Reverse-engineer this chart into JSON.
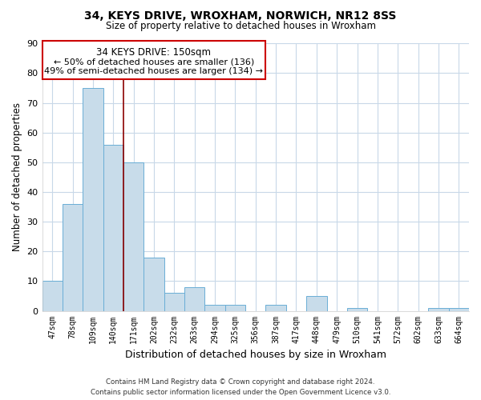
{
  "title": "34, KEYS DRIVE, WROXHAM, NORWICH, NR12 8SS",
  "subtitle": "Size of property relative to detached houses in Wroxham",
  "xlabel": "Distribution of detached houses by size in Wroxham",
  "ylabel": "Number of detached properties",
  "bar_color": "#c8dcea",
  "bar_edge_color": "#6aaed6",
  "highlight_line_color": "#8b0000",
  "categories": [
    "47sqm",
    "78sqm",
    "109sqm",
    "140sqm",
    "171sqm",
    "202sqm",
    "232sqm",
    "263sqm",
    "294sqm",
    "325sqm",
    "356sqm",
    "387sqm",
    "417sqm",
    "448sqm",
    "479sqm",
    "510sqm",
    "541sqm",
    "572sqm",
    "602sqm",
    "633sqm",
    "664sqm"
  ],
  "values": [
    10,
    36,
    75,
    56,
    50,
    18,
    6,
    8,
    2,
    2,
    0,
    2,
    0,
    5,
    0,
    1,
    0,
    0,
    0,
    1,
    1
  ],
  "highlight_index": 3,
  "annotation_title": "34 KEYS DRIVE: 150sqm",
  "annotation_line1": "← 50% of detached houses are smaller (136)",
  "annotation_line2": "49% of semi-detached houses are larger (134) →",
  "ylim": [
    0,
    90
  ],
  "yticks": [
    0,
    10,
    20,
    30,
    40,
    50,
    60,
    70,
    80,
    90
  ],
  "background_color": "#ffffff",
  "grid_color": "#c8d8e8",
  "footer_line1": "Contains HM Land Registry data © Crown copyright and database right 2024.",
  "footer_line2": "Contains public sector information licensed under the Open Government Licence v3.0."
}
